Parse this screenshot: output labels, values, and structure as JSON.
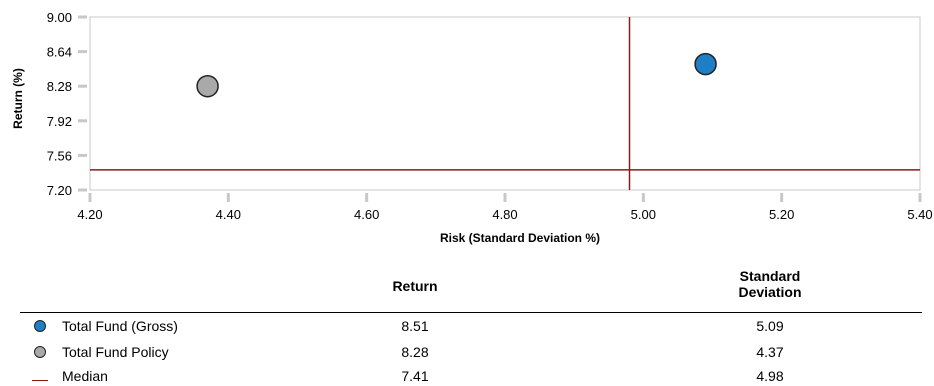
{
  "chart_data": {
    "type": "scatter",
    "xlabel": "Risk (Standard Deviation %)",
    "ylabel": "Return (%)",
    "xlim": [
      4.2,
      5.4
    ],
    "ylim": [
      7.2,
      9.0
    ],
    "xticks": [
      "4.20",
      "4.40",
      "4.60",
      "4.80",
      "5.00",
      "5.20",
      "5.40"
    ],
    "yticks": [
      "7.20",
      "7.56",
      "7.92",
      "8.28",
      "8.64",
      "9.00"
    ],
    "grid": false,
    "series": [
      {
        "name": "Total Fund (Gross)",
        "x": 5.09,
        "y": 8.51,
        "color": "#1f7fc6"
      },
      {
        "name": "Total Fund Policy",
        "x": 4.37,
        "y": 8.28,
        "color": "#a9a9a9"
      }
    ],
    "median": {
      "name": "Median",
      "x": 4.98,
      "y": 7.41,
      "color": "#8b1a1a"
    }
  },
  "table": {
    "headers": {
      "return": "Return",
      "std_line1": "Standard",
      "std_line2": "Deviation"
    },
    "rows": [
      {
        "name": "Total Fund (Gross)",
        "return": "8.51",
        "std": "5.09",
        "color": "#1f7fc6",
        "marker": "circle"
      },
      {
        "name": "Total Fund Policy",
        "return": "8.28",
        "std": "4.37",
        "color": "#a9a9a9",
        "marker": "circle"
      },
      {
        "name": "Median",
        "return": "7.41",
        "std": "4.98",
        "color": "#8b1a1a",
        "marker": "line"
      }
    ]
  }
}
